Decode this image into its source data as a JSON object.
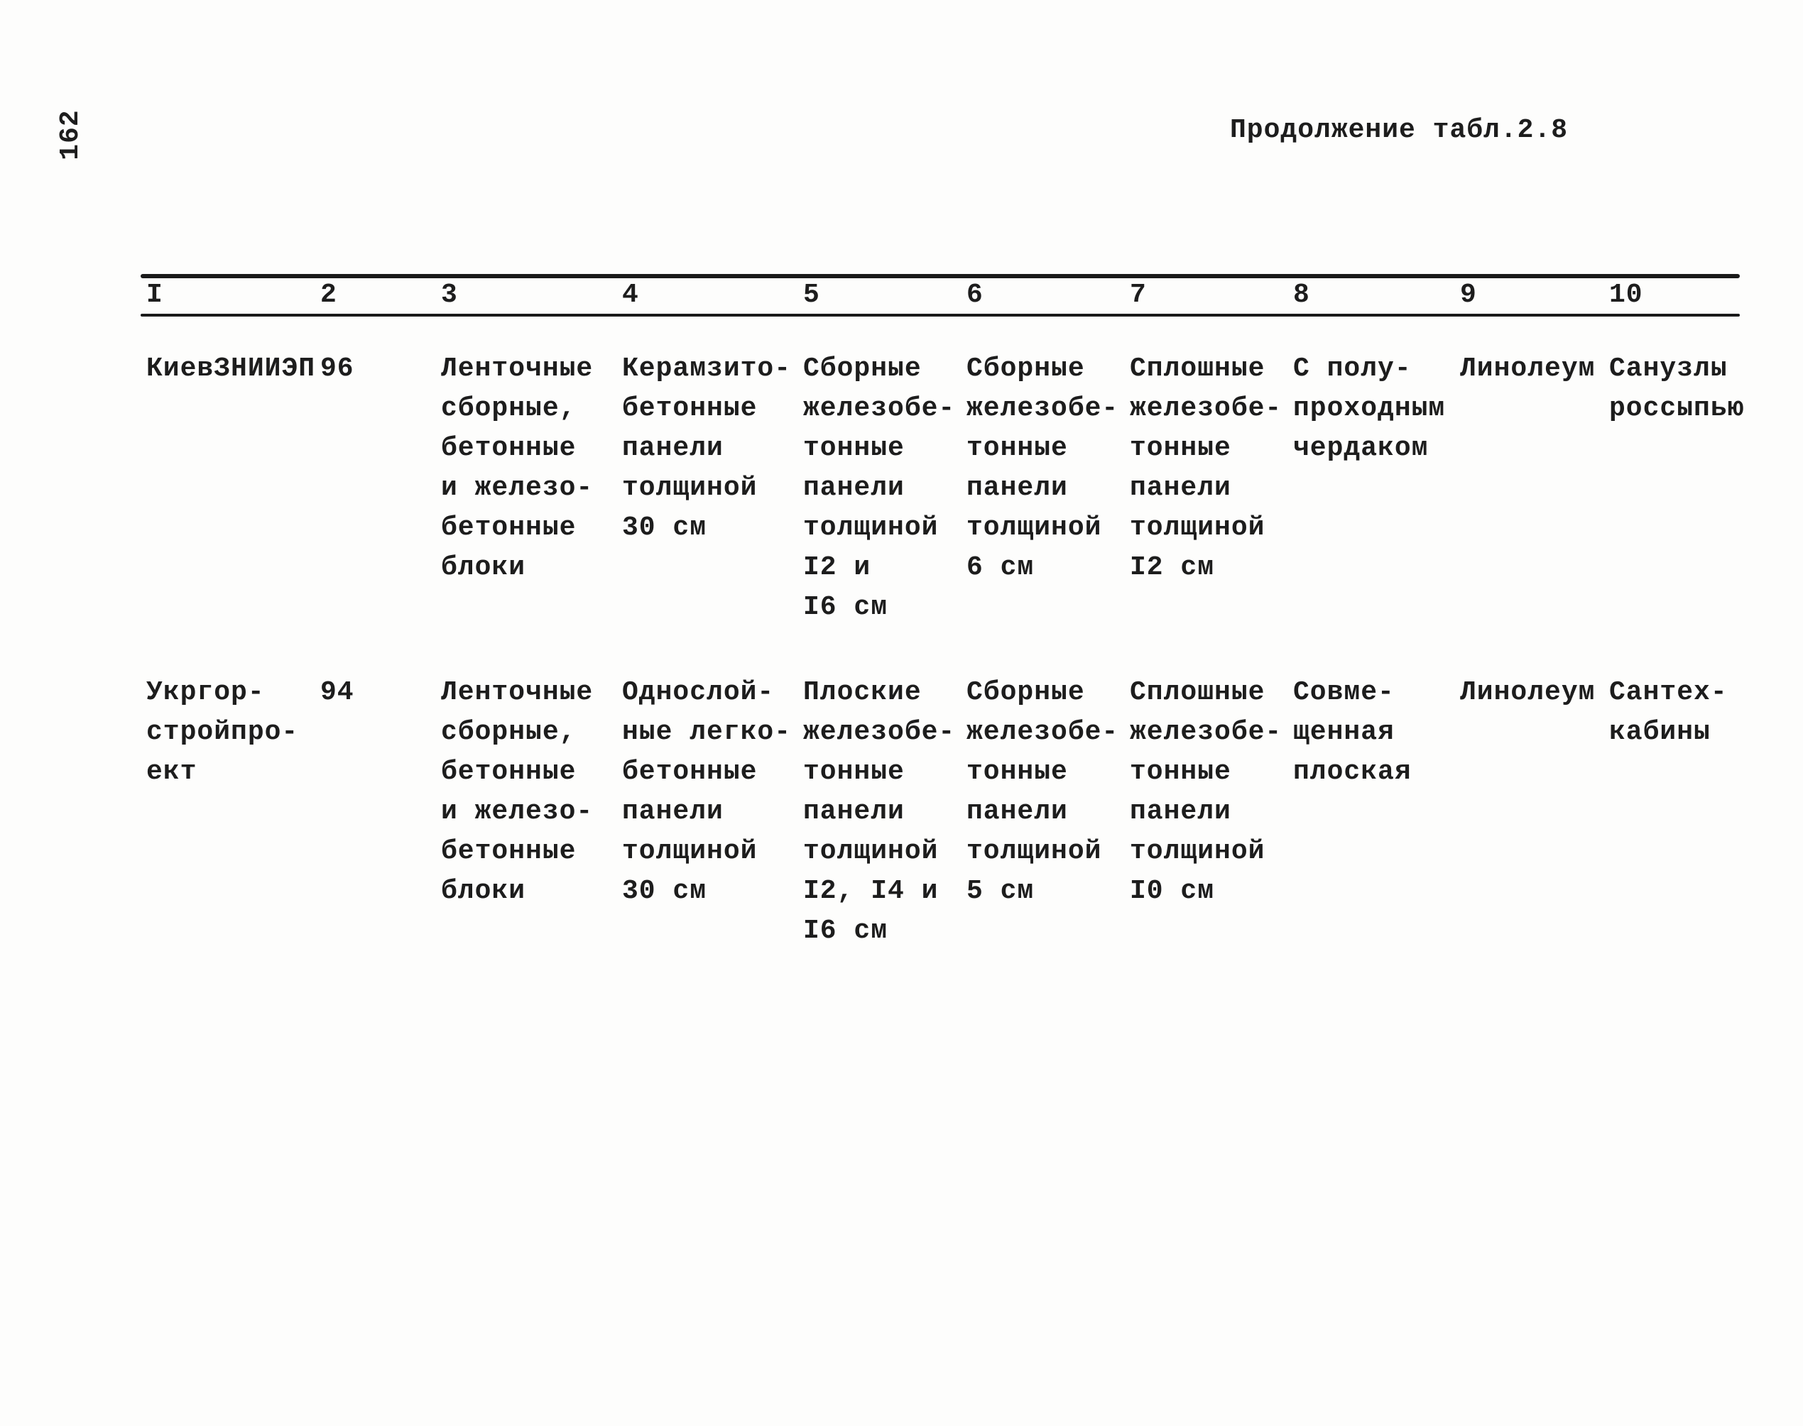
{
  "page": {
    "number": "162",
    "caption": "Продолжение табл.2.8"
  },
  "table": {
    "col_numbers": [
      "I",
      "2",
      "3",
      "4",
      "5",
      "6",
      "7",
      "8",
      "9",
      "10"
    ],
    "rows": [
      {
        "c1": "КиевЗНИИЭП",
        "c2": "96",
        "c3": "Ленточные\nсборные,\nбетонные\nи железо-\nбетонные\nблоки",
        "c4": "Керамзито-\nбетонные\nпанели\nтолщиной\n30 см",
        "c5": "Сборные\nжелезобе-\nтонные\nпанели\nтолщиной\nI2 и\nI6 см",
        "c6": "Сборные\nжелезобе-\nтонные\nпанели\nтолщиной\n6 см",
        "c7": "Сплошные\nжелезобе-\nтонные\nпанели\nтолщиной\nI2 см",
        "c8": "С полу-\nпроходным\nчердаком",
        "c9": "Линолеум",
        "c10": "Санузлы\nроссыпью"
      },
      {
        "c1": "Укргор-\nстройпро-\nект",
        "c2": "94",
        "c3": "Ленточные\nсборные,\nбетонные\nи железо-\nбетонные\nблоки",
        "c4": "Однослой-\nные легко-\nбетонные\nпанели\nтолщиной\n30 см",
        "c5": "Плоские\nжелезобе-\nтонные\nпанели\nтолщиной\nI2, I4 и\nI6 см",
        "c6": "Сборные\nжелезобе-\nтонные\nпанели\nтолщиной\n5 см",
        "c7": "Сплошные\nжелезобе-\nтонные\nпанели\nтолщиной\nI0 см",
        "c8": "Совме-\nщенная\nплоская",
        "c9": "Линолеум",
        "c10": "Сантех-\nкабины"
      }
    ]
  }
}
